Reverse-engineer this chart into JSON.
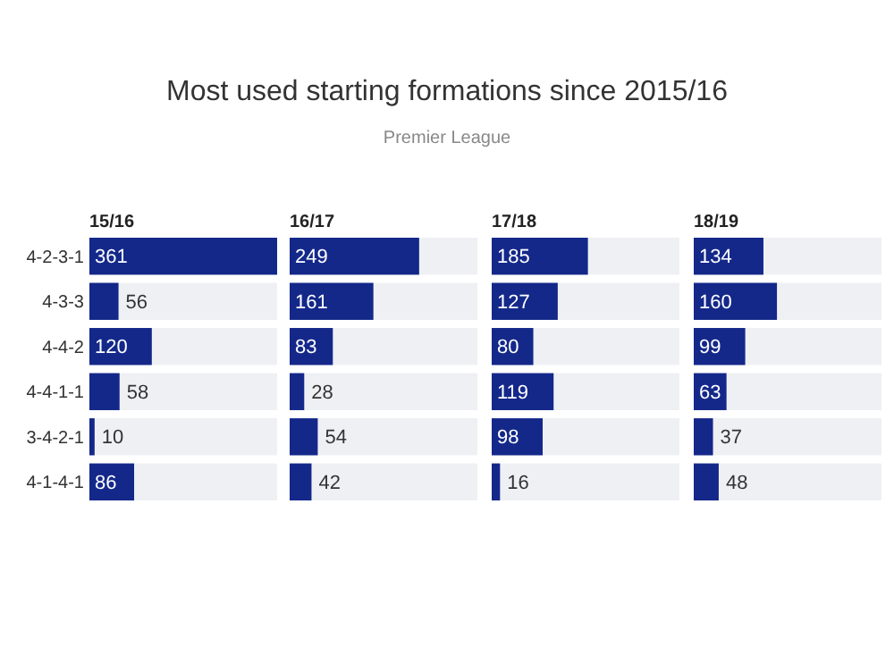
{
  "chart_data": [
    {
      "type": "bar",
      "orientation": "horizontal",
      "title": "15/16",
      "annotations": [
        "Most used starting formations since 2015/16",
        "Premier League"
      ],
      "categories": [
        "4-2-3-1",
        "4-3-3",
        "4-4-2",
        "4-4-1-1",
        "3-4-2-1",
        "4-1-4-1"
      ],
      "values": [
        361,
        56,
        120,
        58,
        10,
        86
      ],
      "color": "#14288a",
      "data_labels": true,
      "tick_labels": "y"
    },
    {
      "type": "bar",
      "orientation": "horizontal",
      "title": "16/17",
      "categories": [
        null,
        null,
        null,
        null,
        null,
        null
      ],
      "values": [
        249,
        161,
        83,
        28,
        54,
        42
      ],
      "color": "#14288a",
      "data_labels": true,
      "tick_labels": false
    },
    {
      "type": "bar",
      "orientation": "horizontal",
      "title": "17/18",
      "categories": [
        null,
        null,
        null,
        null,
        null,
        null
      ],
      "values": [
        185,
        127,
        80,
        119,
        98,
        16
      ],
      "color": "#14288a",
      "data_labels": true,
      "tick_labels": false
    },
    {
      "type": "bar",
      "orientation": "horizontal",
      "title": "18/19",
      "categories": [
        null,
        null,
        null,
        null,
        null,
        null
      ],
      "values": [
        134,
        160,
        99,
        63,
        37,
        48
      ],
      "color": "#14288a",
      "data_labels": true,
      "tick_labels": false
    }
  ]
}
